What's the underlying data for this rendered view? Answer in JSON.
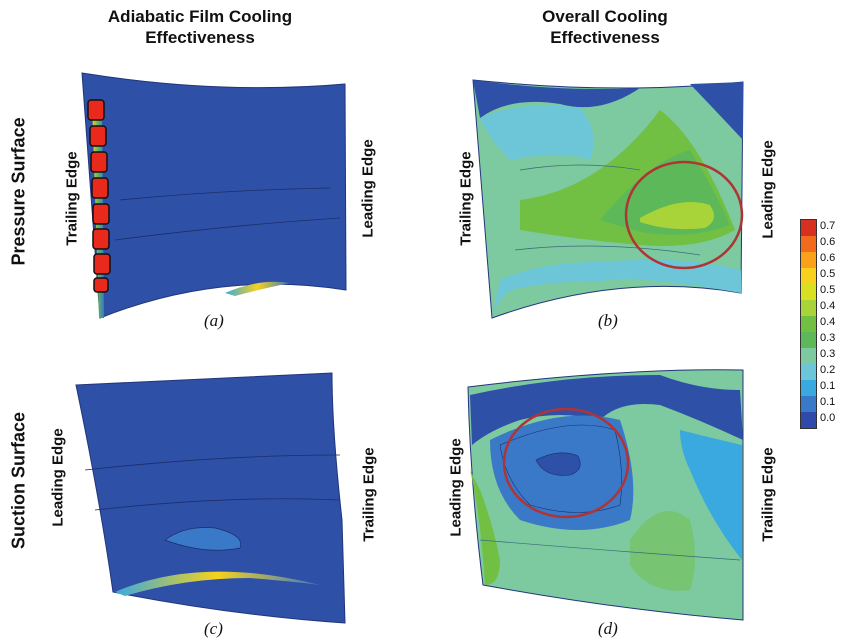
{
  "column_titles": {
    "adiabatic": [
      "Adiabatic Film Cooling",
      "Effectiveness"
    ],
    "overall": [
      "Overall Cooling",
      "Effectiveness"
    ]
  },
  "row_titles": {
    "pressure": "Pressure Surface",
    "suction": "Suction Surface"
  },
  "edges": {
    "trailing": "Trailing Edge",
    "leading": "Leading Edge"
  },
  "panel_labels": {
    "a": "(a)",
    "b": "(b)",
    "c": "(c)",
    "d": "(d)"
  },
  "colorbar": {
    "ticks": [
      "0.7",
      "0.6",
      "0.6",
      "0.5",
      "0.5",
      "0.4",
      "0.4",
      "0.3",
      "0.3",
      "0.2",
      "0.1",
      "0.1",
      "0.0"
    ],
    "colors": [
      "#d7301f",
      "#f26b1d",
      "#f9a11b",
      "#f6d21c",
      "#d8e022",
      "#a8d43a",
      "#72c043",
      "#5db85a",
      "#7dc9a0",
      "#6cc6d8",
      "#3aa9df",
      "#3a78c8",
      "#2f4aa8"
    ]
  },
  "palette": {
    "base": "#2e50a7",
    "hot": "#e8291c",
    "highlight_circle": "#b03434"
  }
}
